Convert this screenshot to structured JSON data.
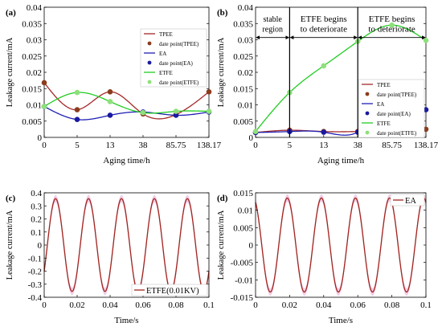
{
  "colors": {
    "tpee": "#a52a2a",
    "ea": "#1f1fb4",
    "etfe": "#22cc22",
    "tpee_point": "#8a3c1c",
    "ea_point": "#1a1aa0",
    "etfe_point": "#8ee07a",
    "wave_line": "#a0251e",
    "wave_band": "#f2c8e4",
    "annotation": "#000000"
  },
  "chart_data": [
    {
      "panel": "(a)",
      "type": "line",
      "xlabel": "Aging time/h",
      "ylabel": "Leakage current/mA",
      "categories": [
        "0",
        "5",
        "13",
        "38",
        "85.75",
        "138.17"
      ],
      "ylim": [
        0,
        0.04
      ],
      "yticks": [
        "0",
        "0.005",
        "0.01",
        "0.015",
        "0.02",
        "0.025",
        "0.03",
        "0.035",
        "0.04"
      ],
      "legend_position": "middle-right",
      "series": [
        {
          "key": "tpee",
          "name": "TPEE",
          "points_name": "date point(TPEE)",
          "values": [
            0.0168,
            0.0085,
            0.014,
            0.0072,
            0.007,
            0.014
          ]
        },
        {
          "key": "ea",
          "name": "EA",
          "points_name": "date point(EA)",
          "values": [
            0.0095,
            0.0055,
            0.0068,
            0.0078,
            0.0068,
            0.0078
          ]
        },
        {
          "key": "etfe",
          "name": "ETFE",
          "points_name": "date point(ETFE)",
          "values": [
            0.0095,
            0.0138,
            0.011,
            0.0076,
            0.008,
            0.008
          ]
        }
      ]
    },
    {
      "panel": "(b)",
      "type": "line",
      "xlabel": "Aging time/h",
      "ylabel": "Leakage current/mA",
      "categories": [
        "0",
        "5",
        "13",
        "38",
        "85.75",
        "138.17"
      ],
      "ylim": [
        0,
        0.04
      ],
      "yticks": [
        "0",
        "0.005",
        "0.01",
        "0.015",
        "0.02",
        "0.025",
        "0.03",
        "0.035",
        "0.04"
      ],
      "legend_position": "bottom-right",
      "annotations": [
        {
          "text": [
            "stable",
            "region"
          ],
          "span": [
            0,
            1
          ]
        },
        {
          "text": [
            "ETFE begins",
            "to deteriorate"
          ],
          "span": [
            1,
            3
          ]
        },
        {
          "text": [
            "ETFE begins",
            "to deteriorate"
          ],
          "span": [
            3,
            5
          ]
        }
      ],
      "series": [
        {
          "key": "tpee",
          "name": "TPEE",
          "points_name": "date point(TPEE)",
          "values": [
            0.0015,
            0.0022,
            0.0018,
            0.0018,
            0.002,
            0.0025
          ]
        },
        {
          "key": "ea",
          "name": "EA",
          "points_name": "date point(EA)",
          "values": [
            0.0015,
            0.0018,
            0.0016,
            0.0016,
            0.0098,
            0.0085
          ]
        },
        {
          "key": "etfe",
          "name": "ETFE",
          "points_name": "date point(ETFE)",
          "values": [
            0.0018,
            0.0138,
            0.022,
            0.0295,
            0.0345,
            0.0298
          ]
        }
      ]
    },
    {
      "panel": "(c)",
      "type": "line",
      "xlabel": "Time/s",
      "ylabel": "Leakage current/mA",
      "xlim": [
        0,
        0.1
      ],
      "xticks": [
        "0",
        "0.02",
        "0.04",
        "0.06",
        "0.08",
        "0.1"
      ],
      "ylim": [
        -0.4,
        0.4
      ],
      "yticks": [
        "-0.4",
        "-0.3",
        "-0.2",
        "-0.1",
        "0",
        "0.1",
        "0.2",
        "0.3",
        "0.4"
      ],
      "legend_position": "bottom-right",
      "series": [
        {
          "name": "ETFE(0.01KV)",
          "amplitude": 0.355,
          "frequency_hz": 50,
          "offset": 0.0,
          "phase_rad": -0.6
        }
      ]
    },
    {
      "panel": "(d)",
      "type": "line",
      "xlabel": "Time/s",
      "ylabel": "Leakage current/mA",
      "xlim": [
        0,
        0.1
      ],
      "xticks": [
        "0",
        "0.02",
        "0.04",
        "0.06",
        "0.08",
        "0.1"
      ],
      "ylim": [
        -0.015,
        0.015
      ],
      "yticks": [
        "-0.015",
        "-0.01",
        "-0.005",
        "0",
        "0.005",
        "0.01",
        "0.015"
      ],
      "legend_position": "top-right",
      "series": [
        {
          "name": "EA",
          "amplitude": 0.0135,
          "frequency_hz": 50,
          "offset": 0.0,
          "phase_rad": 2.0
        }
      ]
    }
  ]
}
